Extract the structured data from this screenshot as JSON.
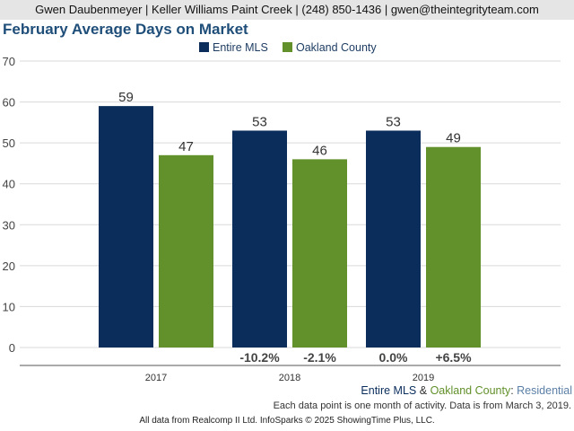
{
  "header": {
    "text": "Gwen Daubenmeyer | Keller Williams Paint Creek | (248) 850-1436 | gwen@theintegrityteam.com"
  },
  "chart_data": {
    "type": "bar",
    "title": "February Average Days on Market",
    "categories": [
      "2017",
      "2018",
      "2019"
    ],
    "series": [
      {
        "name": "Entire MLS",
        "values": [
          59,
          53,
          53
        ],
        "color": "#0a2d5c",
        "changes": [
          "",
          "-10.2%",
          "0.0%"
        ]
      },
      {
        "name": "Oakland County",
        "values": [
          47,
          46,
          49
        ],
        "color": "#62902b",
        "changes": [
          "",
          "-2.1%",
          "+6.5%"
        ]
      }
    ],
    "ylim": [
      0,
      70
    ],
    "yticks": [
      0,
      10,
      20,
      30,
      40,
      50,
      60,
      70
    ],
    "grid": true,
    "legend": "top-center"
  },
  "footer": {
    "series_a": "Entire MLS",
    "amp": " & ",
    "series_b": "Oakland County",
    "colon": ": ",
    "segment": "Residential",
    "note": "Each data point is one month of activity. Data is from March 3, 2019.",
    "credit": "All data from Realcomp II Ltd. InfoSparks © 2025 ShowingTime Plus, LLC."
  },
  "colors": {
    "title": "#1f4e79",
    "segment": "#5b7fa6",
    "grid": "#d9d9d9"
  }
}
